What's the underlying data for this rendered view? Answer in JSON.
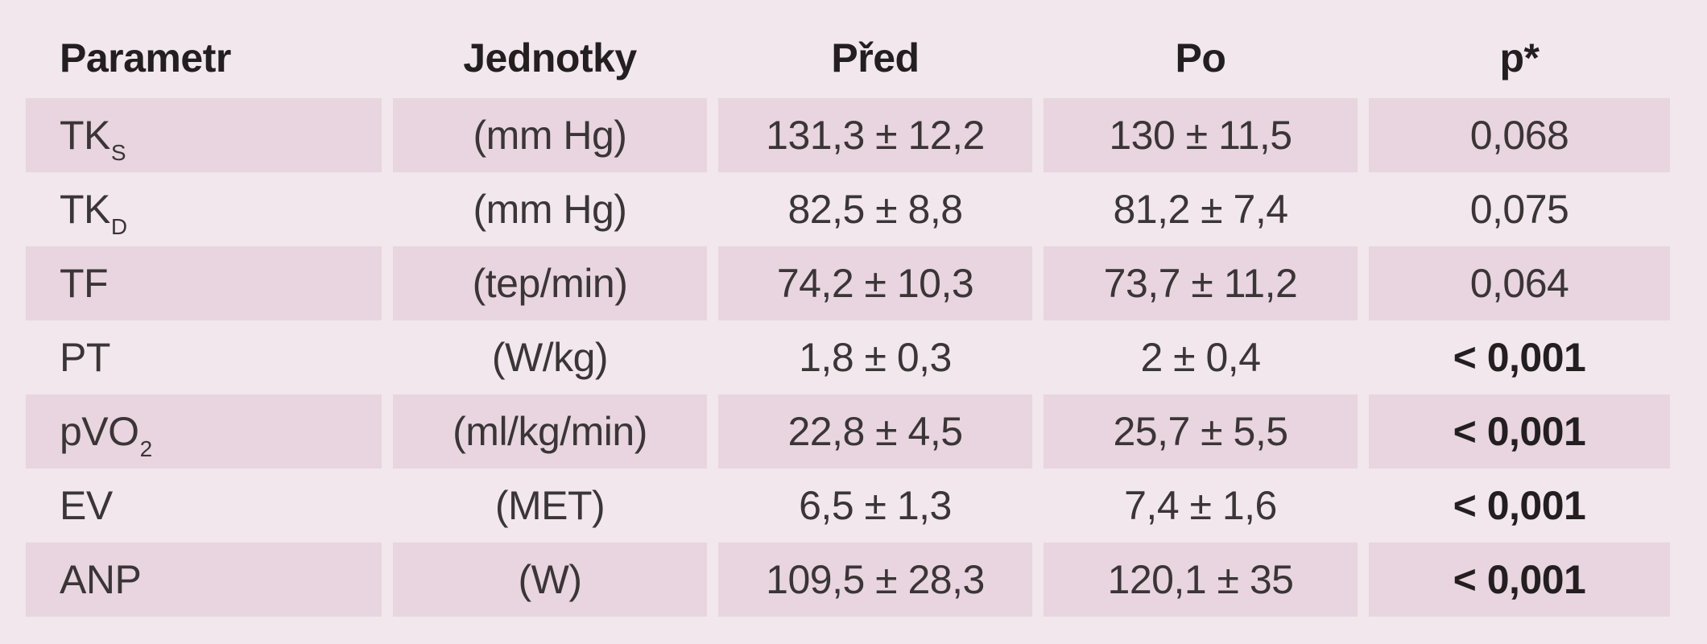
{
  "headers": [
    "Parametr",
    "Jednotky",
    "Před",
    "Po",
    "p*"
  ],
  "rows": [
    {
      "param": "TK",
      "sub": "S",
      "unit": "(mm Hg)",
      "pred": "131,3 ± 12,2",
      "po": "130 ± 11,5",
      "p": "0,068",
      "significant": false
    },
    {
      "param": "TK",
      "sub": "D",
      "unit": "(mm Hg)",
      "pred": "82,5 ± 8,8",
      "po": "81,2 ± 7,4",
      "p": "0,075",
      "significant": false
    },
    {
      "param": "TF",
      "sub": "",
      "unit": "(tep/min)",
      "pred": "74,2 ± 10,3",
      "po": "73,7 ± 11,2",
      "p": "0,064",
      "significant": false
    },
    {
      "param": "PT",
      "sub": "",
      "unit": "(W/kg)",
      "pred": "1,8 ± 0,3",
      "po": "2 ± 0,4",
      "p": "< 0,001",
      "significant": true
    },
    {
      "param": "pVO",
      "sub": "2",
      "unit": "(ml/kg/min)",
      "pred": "22,8 ± 4,5",
      "po": "25,7 ± 5,5",
      "p": "< 0,001",
      "significant": true
    },
    {
      "param": "EV",
      "sub": "",
      "unit": "(MET)",
      "pred": "6,5 ± 1,3",
      "po": "7,4 ± 1,6",
      "p": "< 0,001",
      "significant": true
    },
    {
      "param": "ANP",
      "sub": "",
      "unit": "(W)",
      "pred": "109,5 ± 28,3",
      "po": "120,1 ± 35",
      "p": "< 0,001",
      "significant": true
    }
  ],
  "colors": {
    "background": "#f1e7ec",
    "shaded_row": "#e8d5df",
    "text": "#3a3536",
    "header_text": "#231f20"
  }
}
